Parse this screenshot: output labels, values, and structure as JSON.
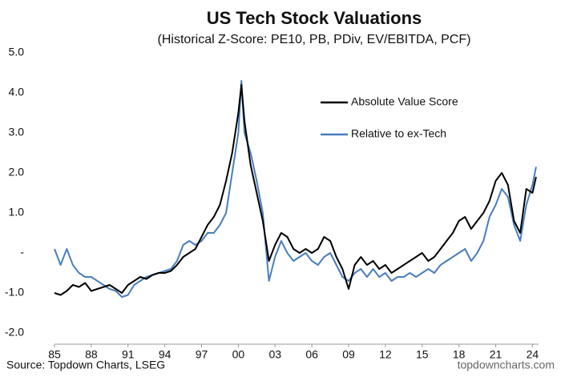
{
  "chart_data": {
    "type": "line",
    "title": "US Tech Stock Valuations",
    "subtitle": "(Historical Z-Score: PE10, PB, PDiv, EV/EBITDA, PCF)",
    "source": "Source: Topdown Charts, LSEG",
    "watermark": "topdowncharts.com",
    "x": [
      1985,
      1985.5,
      1986,
      1986.5,
      1987,
      1987.5,
      1988,
      1988.5,
      1989,
      1989.5,
      1990,
      1990.5,
      1991,
      1991.5,
      1992,
      1992.5,
      1993,
      1993.5,
      1994,
      1994.5,
      1995,
      1995.5,
      1996,
      1996.5,
      1997,
      1997.5,
      1998,
      1998.5,
      1999,
      1999.5,
      2000,
      2000.25,
      2000.5,
      2001,
      2001.5,
      2002,
      2002.5,
      2003,
      2003.5,
      2004,
      2004.5,
      2005,
      2005.5,
      2006,
      2006.5,
      2007,
      2007.5,
      2008,
      2008.5,
      2009,
      2009.5,
      2010,
      2010.5,
      2011,
      2011.5,
      2012,
      2012.5,
      2013,
      2013.5,
      2014,
      2014.5,
      2015,
      2015.5,
      2016,
      2016.5,
      2017,
      2017.5,
      2018,
      2018.5,
      2019,
      2019.5,
      2020,
      2020.5,
      2021,
      2021.5,
      2022,
      2022.5,
      2023,
      2023.5,
      2024,
      2024.3
    ],
    "series": [
      {
        "name": "Absolute Value Score",
        "color": "#000000",
        "values": [
          -1.0,
          -1.05,
          -0.95,
          -0.8,
          -0.85,
          -0.75,
          -0.95,
          -0.9,
          -0.85,
          -0.8,
          -0.9,
          -1.0,
          -0.8,
          -0.7,
          -0.6,
          -0.65,
          -0.55,
          -0.5,
          -0.5,
          -0.45,
          -0.3,
          -0.1,
          0.0,
          0.1,
          0.4,
          0.7,
          0.9,
          1.2,
          1.8,
          2.5,
          3.5,
          4.2,
          3.3,
          2.2,
          1.5,
          0.8,
          -0.2,
          0.2,
          0.5,
          0.4,
          0.1,
          0.0,
          0.1,
          0.0,
          0.1,
          0.4,
          0.3,
          -0.1,
          -0.4,
          -0.9,
          -0.3,
          -0.1,
          -0.3,
          -0.2,
          -0.4,
          -0.3,
          -0.5,
          -0.4,
          -0.3,
          -0.2,
          -0.1,
          0.0,
          -0.2,
          -0.1,
          0.1,
          0.3,
          0.5,
          0.8,
          0.9,
          0.6,
          0.8,
          1.0,
          1.3,
          1.8,
          2.0,
          1.7,
          0.8,
          0.5,
          1.6,
          1.5,
          1.9
        ]
      },
      {
        "name": "Relative to ex-Tech",
        "color": "#4a7ebb",
        "values": [
          0.1,
          -0.3,
          0.1,
          -0.3,
          -0.5,
          -0.6,
          -0.6,
          -0.7,
          -0.8,
          -0.9,
          -0.95,
          -1.1,
          -1.05,
          -0.8,
          -0.7,
          -0.6,
          -0.55,
          -0.5,
          -0.45,
          -0.4,
          -0.2,
          0.2,
          0.3,
          0.2,
          0.3,
          0.5,
          0.5,
          0.7,
          1.0,
          2.0,
          3.0,
          4.3,
          3.0,
          2.5,
          1.8,
          1.0,
          -0.7,
          -0.1,
          0.3,
          0.0,
          -0.2,
          -0.1,
          0.0,
          -0.2,
          -0.3,
          -0.1,
          0.0,
          -0.3,
          -0.6,
          -0.7,
          -0.5,
          -0.4,
          -0.6,
          -0.4,
          -0.6,
          -0.5,
          -0.7,
          -0.6,
          -0.6,
          -0.5,
          -0.6,
          -0.5,
          -0.4,
          -0.5,
          -0.3,
          -0.2,
          -0.1,
          0.0,
          0.1,
          -0.2,
          0.0,
          0.3,
          0.9,
          1.2,
          1.6,
          1.4,
          0.7,
          0.3,
          1.2,
          1.7,
          2.15
        ]
      }
    ],
    "xlim": [
      1985,
      2024.5
    ],
    "xticks": [
      {
        "value": 1985,
        "label": "85"
      },
      {
        "value": 1988,
        "label": "88"
      },
      {
        "value": 1991,
        "label": "91"
      },
      {
        "value": 1994,
        "label": "94"
      },
      {
        "value": 1997,
        "label": "97"
      },
      {
        "value": 2000,
        "label": "00"
      },
      {
        "value": 2003,
        "label": "03"
      },
      {
        "value": 2006,
        "label": "06"
      },
      {
        "value": 2009,
        "label": "09"
      },
      {
        "value": 2012,
        "label": "12"
      },
      {
        "value": 2015,
        "label": "15"
      },
      {
        "value": 2018,
        "label": "18"
      },
      {
        "value": 2021,
        "label": "21"
      },
      {
        "value": 2024,
        "label": "24"
      }
    ],
    "ylim": [
      -2,
      5
    ],
    "yticks": [
      {
        "value": -2,
        "label": "-2.0"
      },
      {
        "value": -1,
        "label": "-1.0"
      },
      {
        "value": 0,
        "label": "-"
      },
      {
        "value": 1,
        "label": "1.0"
      },
      {
        "value": 2,
        "label": "2.0"
      },
      {
        "value": 3,
        "label": "3.0"
      },
      {
        "value": 4,
        "label": "4.0"
      },
      {
        "value": 5,
        "label": "5.0"
      }
    ],
    "grid": false
  }
}
